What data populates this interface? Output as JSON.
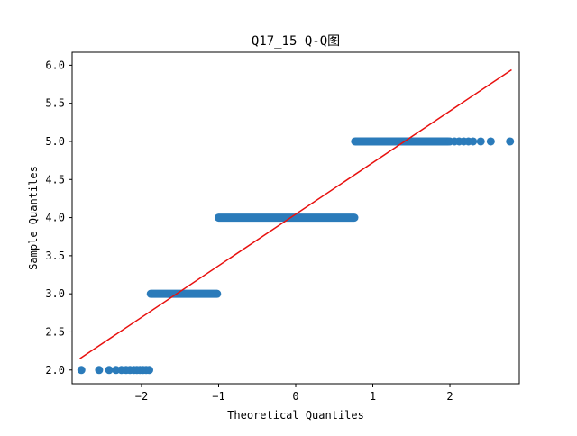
{
  "chart_data": {
    "type": "scatter",
    "title": "Q17_15 Q-Q图",
    "xlabel": "Theoretical Quantiles",
    "ylabel": "Sample Quantiles",
    "xlim": [
      -2.9,
      2.9
    ],
    "ylim": [
      1.82,
      6.17
    ],
    "xticks": [
      -2,
      -1,
      0,
      1,
      2
    ],
    "yticks": [
      2.0,
      2.5,
      3.0,
      3.5,
      4.0,
      4.5,
      5.0,
      5.5,
      6.0
    ],
    "grid": false,
    "marker_color": "#2b7bba",
    "line_color": "#e8100e",
    "reference_line": {
      "x": [
        -2.8,
        2.8
      ],
      "y": [
        2.15,
        5.94
      ]
    },
    "series": [
      {
        "y": 2.0,
        "x_start": -2.78,
        "x_end": -1.9,
        "isolated_x": [
          -2.78,
          -2.55,
          -2.42,
          -2.33,
          -2.26,
          -2.2,
          -2.15,
          -2.1,
          -2.06,
          -2.02,
          -1.98,
          -1.94,
          -1.9
        ],
        "band": []
      },
      {
        "y": 3.0,
        "x_start": -1.88,
        "x_end": -1.02,
        "isolated_x": [],
        "band": [
          -1.88,
          -1.02
        ]
      },
      {
        "y": 4.0,
        "x_start": -1.0,
        "x_end": 0.76,
        "isolated_x": [],
        "band": [
          -1.0,
          0.76
        ]
      },
      {
        "y": 5.0,
        "x_start": 0.77,
        "x_end": 2.78,
        "isolated_x": [
          2.0,
          2.06,
          2.12,
          2.18,
          2.24,
          2.3,
          2.4,
          2.53,
          2.78
        ],
        "band": [
          0.77,
          1.98
        ]
      }
    ]
  }
}
